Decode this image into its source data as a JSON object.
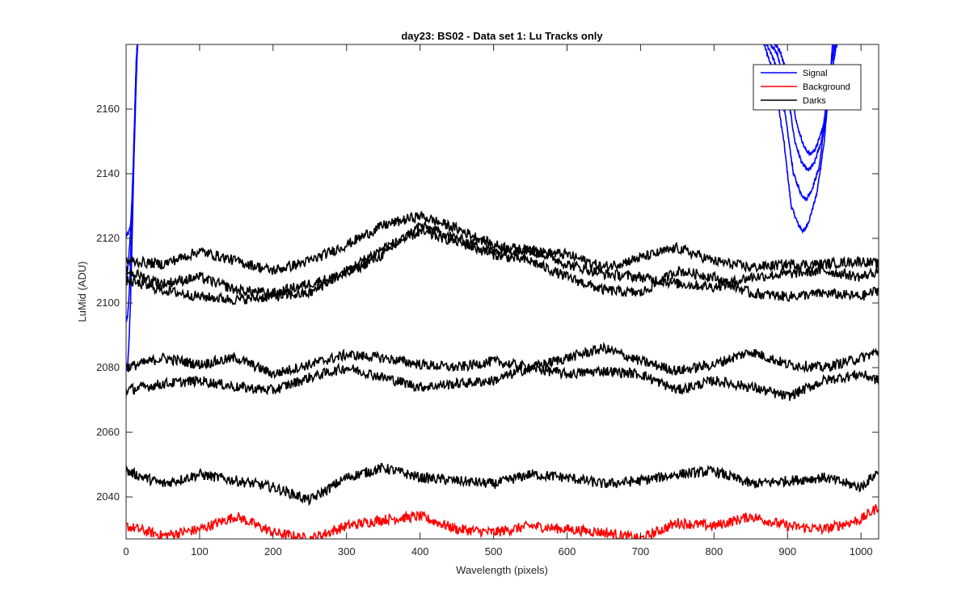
{
  "chart_data": {
    "type": "line",
    "title": "day23: BS02 - Data set 1: Lu Tracks only",
    "xlabel": "Wavelength (pixels)",
    "ylabel": "LuMid (ADU)",
    "xlim": [
      0,
      1024
    ],
    "ylim": [
      2027,
      2180
    ],
    "xticks": [
      0,
      100,
      200,
      300,
      400,
      500,
      600,
      700,
      800,
      900,
      1000
    ],
    "yticks": [
      2040,
      2060,
      2080,
      2100,
      2120,
      2140,
      2160
    ],
    "grid": false,
    "legend_position": "top-right",
    "legend": [
      {
        "name": "Signal",
        "color": "#0000ff"
      },
      {
        "name": "Background",
        "color": "#ff0000"
      },
      {
        "name": "Darks",
        "color": "#000000"
      }
    ],
    "series": [
      {
        "name": "Signal",
        "color": "#0000ff",
        "x": [
          0,
          2,
          4,
          6,
          8,
          10,
          12,
          14,
          16
        ],
        "y": [
          2121,
          2121,
          2122,
          2124,
          2130,
          2140,
          2155,
          2170,
          2182
        ],
        "x2": [
          865,
          880,
          895,
          905,
          915,
          922,
          930,
          940,
          950,
          958,
          962
        ],
        "y2": [
          2182,
          2172,
          2150,
          2130,
          2124,
          2122,
          2126,
          2134,
          2150,
          2170,
          2182
        ]
      },
      {
        "name": "Signal",
        "color": "#0000ff",
        "x": [
          0,
          2,
          4,
          6,
          8,
          10,
          12,
          14,
          16
        ],
        "y": [
          2108,
          2110,
          2115,
          2122,
          2132,
          2145,
          2160,
          2175,
          2182
        ],
        "x2": [
          868,
          882,
          897,
          908,
          918,
          925,
          933,
          943,
          952,
          960,
          965
        ],
        "y2": [
          2182,
          2175,
          2158,
          2140,
          2134,
          2132,
          2135,
          2142,
          2158,
          2175,
          2182
        ]
      },
      {
        "name": "Signal",
        "color": "#0000ff",
        "x": [
          0,
          2,
          4,
          6,
          8,
          10,
          12,
          14,
          16
        ],
        "y": [
          2094,
          2096,
          2102,
          2112,
          2126,
          2142,
          2160,
          2176,
          2182
        ],
        "x2": [
          872,
          886,
          900,
          910,
          920,
          928,
          936,
          946,
          955,
          962,
          968
        ],
        "y2": [
          2182,
          2177,
          2165,
          2150,
          2143,
          2141,
          2143,
          2150,
          2165,
          2177,
          2182
        ]
      },
      {
        "name": "Signal",
        "color": "#0000ff",
        "x": [
          0,
          2,
          4,
          6,
          8,
          10,
          12,
          14,
          16
        ],
        "y": [
          2079,
          2080,
          2088,
          2100,
          2118,
          2138,
          2158,
          2175,
          2182
        ],
        "x2": [
          876,
          890,
          903,
          913,
          923,
          931,
          939,
          949,
          958,
          965,
          970
        ],
        "y2": [
          2182,
          2178,
          2168,
          2155,
          2148,
          2146,
          2148,
          2155,
          2168,
          2178,
          2182
        ]
      },
      {
        "name": "Background",
        "color": "#ff0000",
        "x": [
          0,
          50,
          100,
          150,
          200,
          250,
          300,
          350,
          400,
          450,
          500,
          550,
          600,
          650,
          700,
          750,
          800,
          850,
          900,
          950,
          1000,
          1024
        ],
        "y": [
          2031,
          2028,
          2030,
          2034,
          2029,
          2027,
          2031,
          2033,
          2034,
          2030,
          2029,
          2031,
          2030,
          2029,
          2027,
          2032,
          2031,
          2034,
          2031,
          2030,
          2033,
          2037
        ]
      },
      {
        "name": "Darks",
        "color": "#000000",
        "x": [
          0,
          50,
          100,
          150,
          200,
          250,
          300,
          350,
          400,
          450,
          500,
          550,
          600,
          650,
          700,
          750,
          800,
          850,
          900,
          950,
          1000,
          1024
        ],
        "y": [
          2048,
          2044,
          2047,
          2045,
          2043,
          2039,
          2046,
          2049,
          2046,
          2045,
          2044,
          2047,
          2046,
          2044,
          2045,
          2047,
          2048,
          2044,
          2045,
          2046,
          2043,
          2048
        ]
      },
      {
        "name": "Darks",
        "color": "#000000",
        "x": [
          0,
          50,
          100,
          150,
          200,
          250,
          300,
          350,
          400,
          450,
          500,
          550,
          600,
          650,
          700,
          750,
          800,
          850,
          900,
          950,
          1000,
          1024
        ],
        "y": [
          2080,
          2083,
          2081,
          2083,
          2078,
          2081,
          2084,
          2083,
          2081,
          2080,
          2082,
          2080,
          2083,
          2086,
          2082,
          2079,
          2081,
          2085,
          2081,
          2080,
          2083,
          2085
        ]
      },
      {
        "name": "Darks",
        "color": "#000000",
        "x": [
          0,
          50,
          100,
          150,
          200,
          250,
          300,
          350,
          400,
          450,
          500,
          550,
          600,
          650,
          700,
          750,
          800,
          850,
          900,
          950,
          1000,
          1024
        ],
        "y": [
          2073,
          2075,
          2076,
          2074,
          2073,
          2077,
          2080,
          2077,
          2074,
          2075,
          2076,
          2080,
          2078,
          2079,
          2078,
          2073,
          2076,
          2074,
          2071,
          2076,
          2078,
          2076
        ]
      },
      {
        "name": "Darks",
        "color": "#000000",
        "x": [
          0,
          50,
          100,
          150,
          200,
          250,
          300,
          350,
          400,
          450,
          500,
          550,
          600,
          650,
          700,
          750,
          800,
          850,
          900,
          950,
          1000,
          1024
        ],
        "y": [
          2113,
          2112,
          2116,
          2113,
          2110,
          2113,
          2118,
          2124,
          2127,
          2123,
          2118,
          2116,
          2115,
          2111,
          2114,
          2117,
          2113,
          2111,
          2112,
          2112,
          2113,
          2112
        ]
      },
      {
        "name": "Darks",
        "color": "#000000",
        "x": [
          0,
          50,
          100,
          150,
          200,
          250,
          300,
          350,
          400,
          450,
          500,
          550,
          600,
          650,
          700,
          750,
          800,
          850,
          900,
          950,
          1000,
          1024
        ],
        "y": [
          2110,
          2106,
          2108,
          2104,
          2103,
          2106,
          2109,
          2115,
          2124,
          2120,
          2116,
          2117,
          2112,
          2109,
          2108,
          2106,
          2105,
          2108,
          2109,
          2110,
          2108,
          2110
        ]
      },
      {
        "name": "Darks",
        "color": "#000000",
        "x": [
          0,
          50,
          100,
          150,
          200,
          250,
          300,
          350,
          400,
          450,
          500,
          550,
          600,
          650,
          700,
          750,
          800,
          850,
          900,
          950,
          1000,
          1024
        ],
        "y": [
          2107,
          2104,
          2102,
          2101,
          2102,
          2103,
          2110,
          2117,
          2122,
          2119,
          2115,
          2113,
          2108,
          2104,
          2103,
          2110,
          2108,
          2103,
          2102,
          2103,
          2102,
          2104
        ]
      }
    ]
  }
}
